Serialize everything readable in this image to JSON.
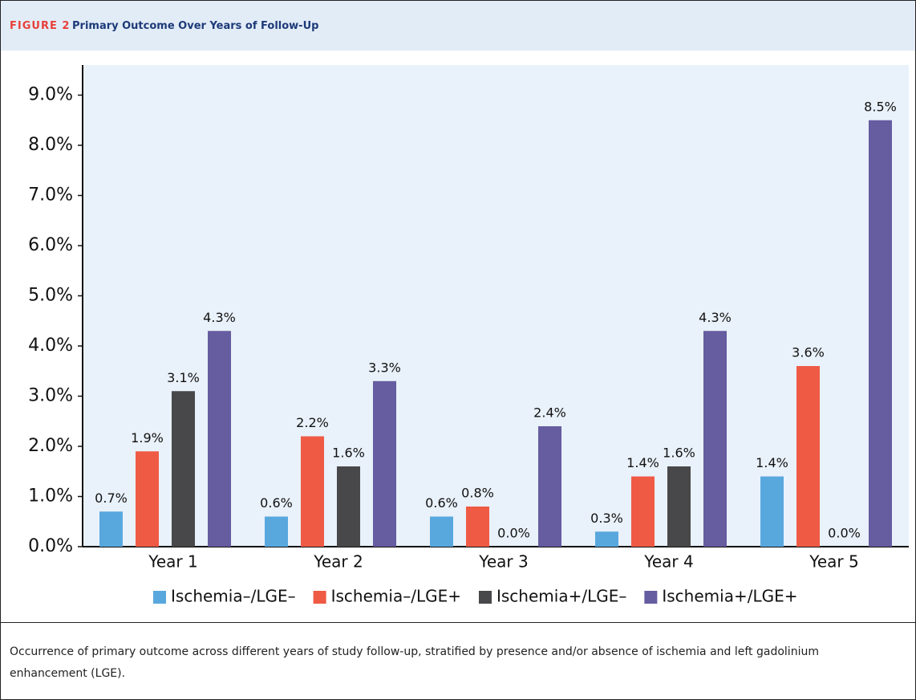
{
  "header": {
    "label": "FIGURE 2",
    "title": "Primary Outcome Over Years of Follow-Up"
  },
  "chart_data": {
    "type": "bar",
    "categories": [
      "Year 1",
      "Year 2",
      "Year 3",
      "Year 4",
      "Year 5"
    ],
    "series": [
      {
        "name": "Ischemia–/LGE–",
        "color": "#58a8de",
        "values": [
          0.7,
          0.6,
          0.6,
          0.3,
          1.4
        ],
        "value_labels": [
          "0.7%",
          "0.6%",
          "0.6%",
          "0.3%",
          "1.4%"
        ]
      },
      {
        "name": "Ischemia–/LGE+",
        "color": "#ef5a45",
        "values": [
          1.9,
          2.2,
          0.8,
          1.4,
          3.6
        ],
        "value_labels": [
          "1.9%",
          "2.2%",
          "0.8%",
          "1.4%",
          "3.6%"
        ]
      },
      {
        "name": "Ischemia+/LGE–",
        "color": "#48484a",
        "values": [
          3.1,
          1.6,
          0.0,
          1.6,
          0.0
        ],
        "value_labels": [
          "3.1%",
          "1.6%",
          "0.0%",
          "1.6%",
          "0.0%"
        ]
      },
      {
        "name": "Ischemia+/LGE+",
        "color": "#665ca0",
        "values": [
          4.3,
          3.3,
          2.4,
          4.3,
          8.5
        ],
        "value_labels": [
          "4.3%",
          "3.3%",
          "2.4%",
          "4.3%",
          "8.5%"
        ]
      }
    ],
    "ylim": [
      0,
      9.6
    ],
    "yticks": [
      {
        "value": 0,
        "label": "0.0%"
      },
      {
        "value": 1,
        "label": "1.0%"
      },
      {
        "value": 2,
        "label": "2.0%"
      },
      {
        "value": 3,
        "label": "3.0%"
      },
      {
        "value": 4,
        "label": "4.0%"
      },
      {
        "value": 5,
        "label": "5.0%"
      },
      {
        "value": 6,
        "label": "6.0%"
      },
      {
        "value": 7,
        "label": "7.0%"
      },
      {
        "value": 8,
        "label": "8.0%"
      },
      {
        "value": 9,
        "label": "9.0%"
      }
    ],
    "legend": "bottom"
  },
  "caption": "Occurrence of primary outcome across different years of study follow-up, stratified by presence and/or absence of ischemia and left gadolinium enhancement (LGE)."
}
